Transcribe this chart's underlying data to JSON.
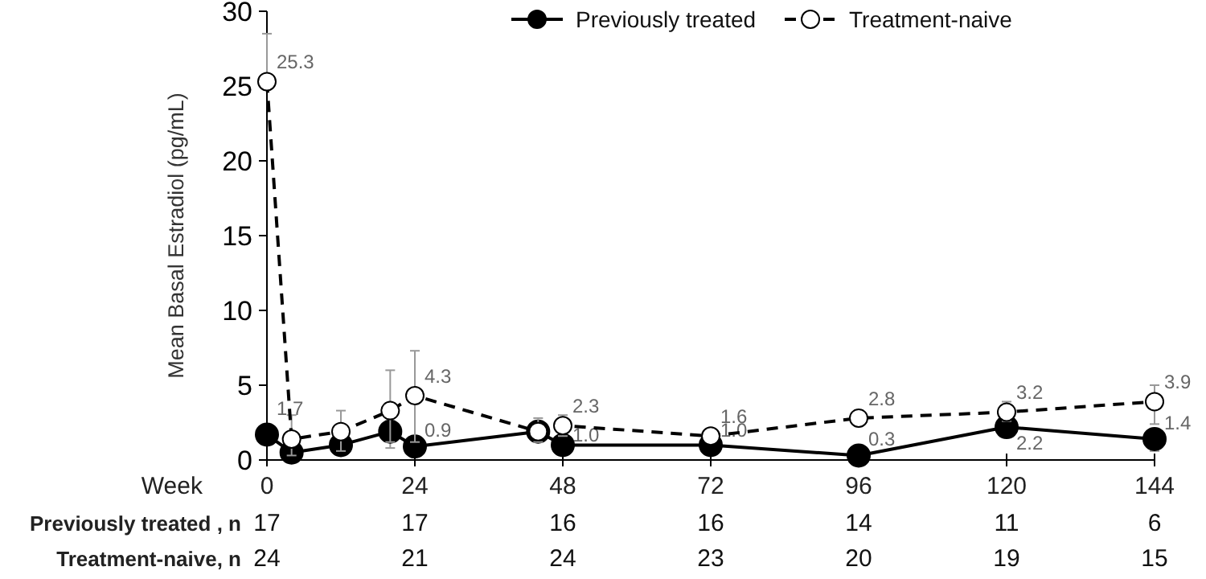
{
  "chart_data": {
    "type": "line",
    "xlabel": "Week",
    "ylabel": "Mean Basal  Estradiol (pg/mL)",
    "x": [
      0,
      4,
      12,
      20,
      24,
      44,
      48,
      72,
      96,
      120,
      144
    ],
    "xlim": [
      0,
      144
    ],
    "xticks": [
      0,
      24,
      48,
      72,
      96,
      120,
      144
    ],
    "ylim": [
      0,
      30
    ],
    "yticks": [
      0,
      5,
      10,
      15,
      20,
      25,
      30
    ],
    "grid": false,
    "legend": "top",
    "series": [
      {
        "name": "Previously treated",
        "color": "#000000",
        "marker": "circle",
        "line_style": "solid",
        "values": [
          1.7,
          0.5,
          1.0,
          1.9,
          0.9,
          1.9,
          1.0,
          1.0,
          0.3,
          2.2,
          1.4
        ],
        "errors": [
          null,
          null,
          [
            0.4,
            1.6
          ],
          [
            0.8,
            2.6
          ],
          null,
          null,
          [
            0.4,
            1.6
          ],
          null,
          null,
          [
            1.5,
            2.9
          ],
          [
            0.6,
            2.0
          ]
        ],
        "value_labels": [
          "1.7",
          null,
          null,
          null,
          "0.9",
          null,
          "1.0",
          "1.0",
          "0.3",
          "2.2",
          "1.4"
        ]
      },
      {
        "name": "Treatment-naive",
        "color": "#000000",
        "marker": "circle",
        "line_style": "dashed",
        "values": [
          25.3,
          1.4,
          1.9,
          3.3,
          4.3,
          1.9,
          2.3,
          1.6,
          2.8,
          3.2,
          3.9
        ],
        "errors": [
          [
            25.3,
            28.5
          ],
          [
            0.3,
            3.0
          ],
          [
            0.6,
            3.3
          ],
          [
            1.2,
            6.0
          ],
          [
            1.2,
            7.3
          ],
          [
            1.2,
            2.8
          ],
          [
            1.6,
            3.0
          ],
          null,
          [
            2.3,
            3.3
          ],
          [
            2.6,
            3.9
          ],
          [
            2.4,
            5.0
          ]
        ],
        "value_labels": [
          "25.3",
          null,
          null,
          null,
          "4.3",
          null,
          "2.3",
          "1.6",
          "2.8",
          "3.2",
          "3.9"
        ]
      }
    ],
    "annotations": [
      "Previously treated , n",
      "17",
      "17",
      "16",
      "16",
      "14",
      "11",
      "6",
      "Treatment-naive, n",
      "24",
      "21",
      "24",
      "23",
      "20",
      "19",
      "15"
    ]
  }
}
